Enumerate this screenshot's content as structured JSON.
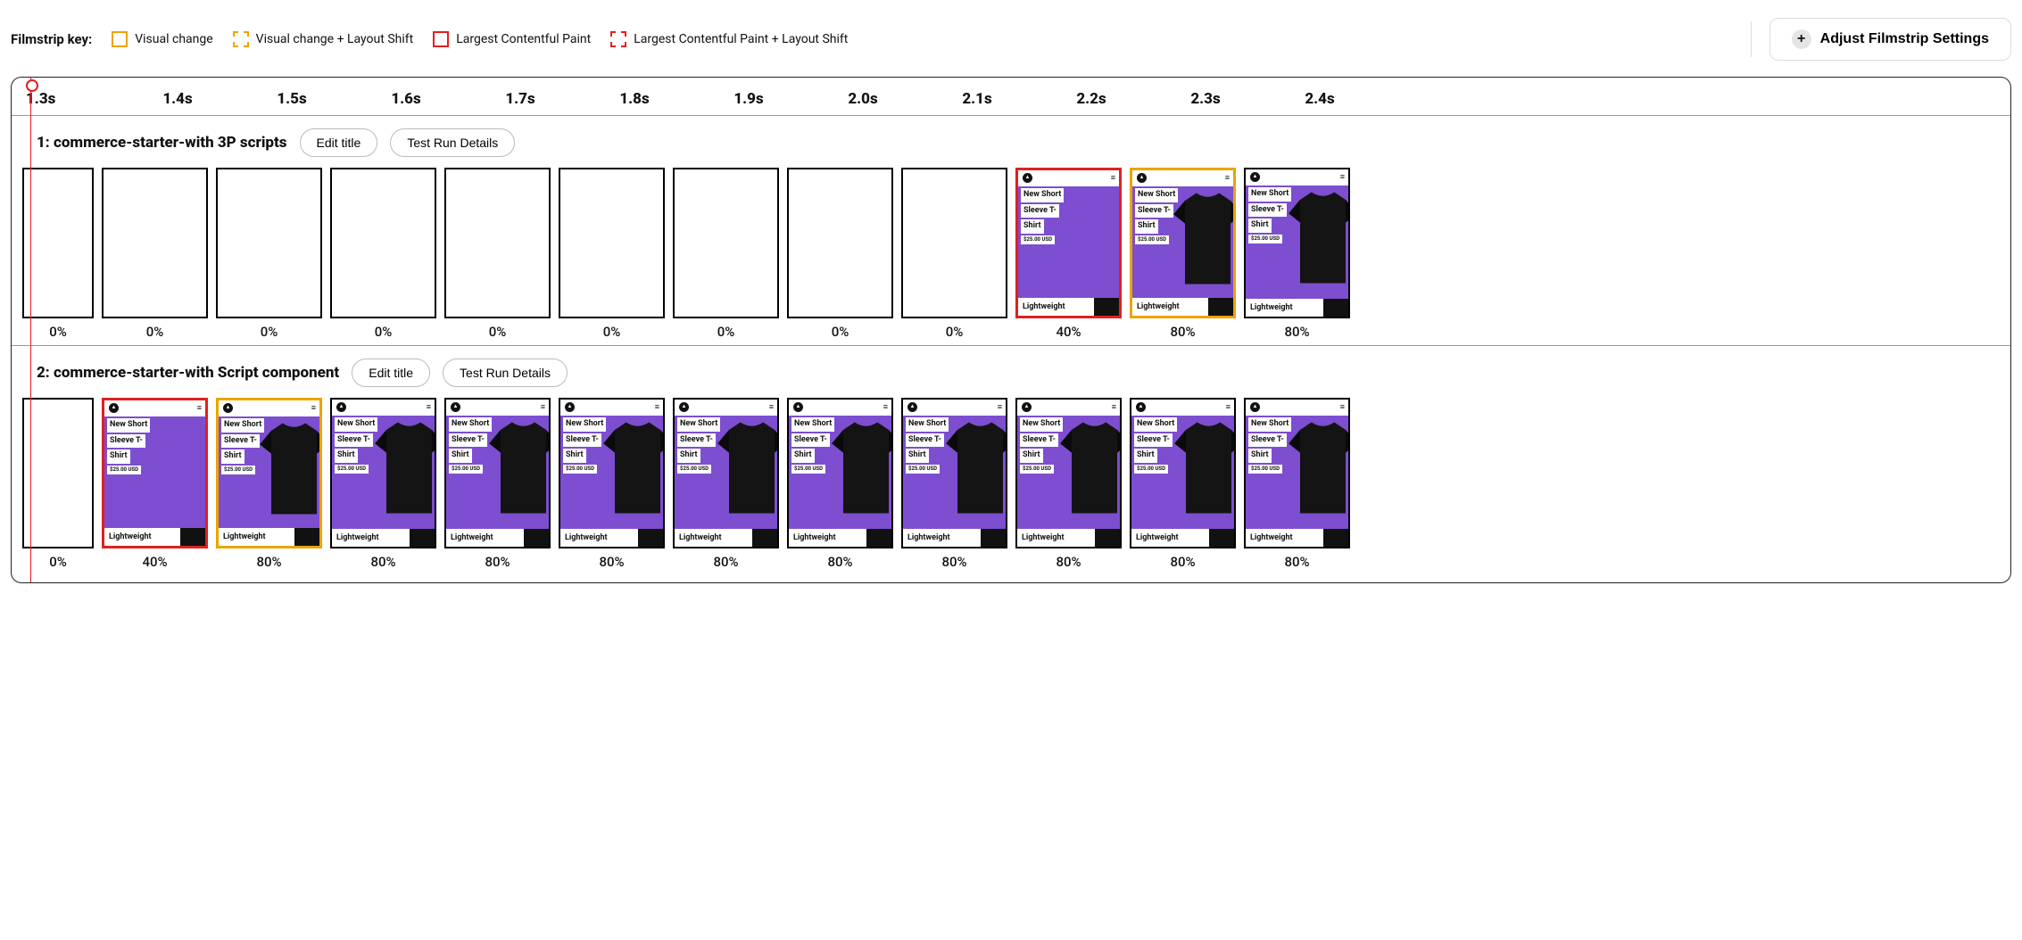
{
  "colors": {
    "lcp_border": "#e02020",
    "visual_border": "#eba400",
    "blank_border": "#000000",
    "panel_border": "#222222",
    "playhead": "#e02020",
    "thumb_bg_purple": "#7d4ecf",
    "thumb_tshirt": "#141414",
    "pill_border": "#bbbbbb"
  },
  "legend": {
    "label": "Filmstrip key:",
    "items": [
      {
        "label": "Visual change",
        "border_color": "#eba400",
        "dashed": false
      },
      {
        "label": "Visual change + Layout Shift",
        "border_color": "#eba400",
        "dashed": true
      },
      {
        "label": "Largest Contentful Paint",
        "border_color": "#e02020",
        "dashed": false
      },
      {
        "label": "Largest Contentful Paint + Layout Shift",
        "border_color": "#e02020",
        "dashed": true
      }
    ]
  },
  "adjust_button_label": "Adjust Filmstrip Settings",
  "timeline": [
    "1.3s",
    "1.4s",
    "1.5s",
    "1.6s",
    "1.7s",
    "1.8s",
    "1.9s",
    "2.0s",
    "2.1s",
    "2.2s",
    "2.3s",
    "2.4s"
  ],
  "filmstrips": [
    {
      "title": "1: commerce-starter-with 3P scripts",
      "edit_label": "Edit title",
      "details_label": "Test Run Details",
      "frames": [
        {
          "pct": "0%",
          "state": "blank",
          "border": "blank"
        },
        {
          "pct": "0%",
          "state": "blank",
          "border": "blank"
        },
        {
          "pct": "0%",
          "state": "blank",
          "border": "blank"
        },
        {
          "pct": "0%",
          "state": "blank",
          "border": "blank"
        },
        {
          "pct": "0%",
          "state": "blank",
          "border": "blank"
        },
        {
          "pct": "0%",
          "state": "blank",
          "border": "blank"
        },
        {
          "pct": "0%",
          "state": "blank",
          "border": "blank"
        },
        {
          "pct": "0%",
          "state": "blank",
          "border": "blank"
        },
        {
          "pct": "0%",
          "state": "blank",
          "border": "blank"
        },
        {
          "pct": "40%",
          "state": "content_notshirt",
          "border": "lcp"
        },
        {
          "pct": "80%",
          "state": "content",
          "border": "visual"
        },
        {
          "pct": "80%",
          "state": "content",
          "border": "blank"
        }
      ]
    },
    {
      "title": "2: commerce-starter-with Script component",
      "edit_label": "Edit title",
      "details_label": "Test Run Details",
      "frames": [
        {
          "pct": "0%",
          "state": "blank",
          "border": "blank"
        },
        {
          "pct": "40%",
          "state": "content_notshirt",
          "border": "lcp"
        },
        {
          "pct": "80%",
          "state": "content",
          "border": "visual"
        },
        {
          "pct": "80%",
          "state": "content",
          "border": "blank"
        },
        {
          "pct": "80%",
          "state": "content",
          "border": "blank"
        },
        {
          "pct": "80%",
          "state": "content",
          "border": "blank"
        },
        {
          "pct": "80%",
          "state": "content",
          "border": "blank"
        },
        {
          "pct": "80%",
          "state": "content",
          "border": "blank"
        },
        {
          "pct": "80%",
          "state": "content",
          "border": "blank"
        },
        {
          "pct": "80%",
          "state": "content",
          "border": "blank"
        },
        {
          "pct": "80%",
          "state": "content",
          "border": "blank"
        },
        {
          "pct": "80%",
          "state": "content",
          "border": "blank"
        }
      ]
    }
  ],
  "thumb_content": {
    "title_l1": "New Short",
    "title_l2": "Sleeve T-",
    "title_l3": "Shirt",
    "price": "$25.00 USD",
    "lightweight": "Lightweight"
  }
}
